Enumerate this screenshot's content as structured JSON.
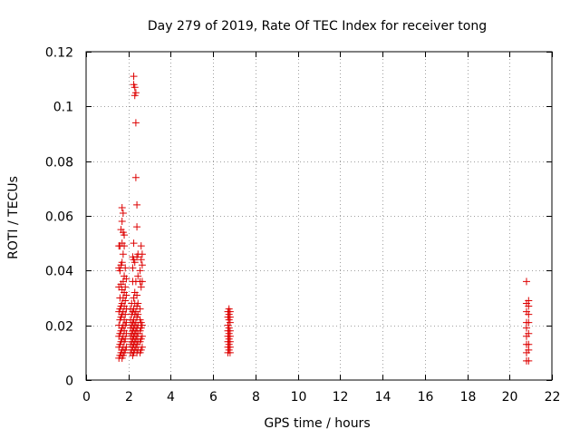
{
  "chart_data": {
    "type": "scatter",
    "title": "Day 279 of 2019, Rate Of TEC Index for receiver tong",
    "xlabel": "GPS time / hours",
    "ylabel": "ROTI / TECUs",
    "xlim": [
      0,
      22
    ],
    "ylim": [
      0,
      0.12
    ],
    "xticks": [
      0,
      2,
      4,
      6,
      8,
      10,
      12,
      14,
      16,
      18,
      20,
      22
    ],
    "yticks": [
      0,
      0.02,
      0.04,
      0.06,
      0.08,
      0.1,
      0.12
    ],
    "xtick_labels": [
      "0",
      "2",
      "4",
      "6",
      "8",
      "10",
      "12",
      "14",
      "16",
      "18",
      "20",
      "22"
    ],
    "ytick_labels": [
      "0",
      "0.02",
      "0.04",
      "0.06",
      "0.08",
      "0.1",
      "0.12"
    ],
    "grid": true,
    "marker": "plus",
    "color": "#dd0000",
    "points": [
      [
        1.55,
        0.008
      ],
      [
        1.55,
        0.012
      ],
      [
        1.55,
        0.016
      ],
      [
        1.55,
        0.02
      ],
      [
        1.55,
        0.025
      ],
      [
        1.55,
        0.034
      ],
      [
        1.55,
        0.041
      ],
      [
        1.55,
        0.049
      ],
      [
        1.6,
        0.009
      ],
      [
        1.6,
        0.013
      ],
      [
        1.6,
        0.017
      ],
      [
        1.6,
        0.022
      ],
      [
        1.6,
        0.026
      ],
      [
        1.6,
        0.03
      ],
      [
        1.6,
        0.04
      ],
      [
        1.6,
        0.049
      ],
      [
        1.65,
        0.01
      ],
      [
        1.65,
        0.014
      ],
      [
        1.65,
        0.018
      ],
      [
        1.65,
        0.023
      ],
      [
        1.65,
        0.027
      ],
      [
        1.65,
        0.035
      ],
      [
        1.65,
        0.042
      ],
      [
        1.65,
        0.055
      ],
      [
        1.7,
        0.008
      ],
      [
        1.7,
        0.011
      ],
      [
        1.7,
        0.015
      ],
      [
        1.7,
        0.019
      ],
      [
        1.7,
        0.024
      ],
      [
        1.7,
        0.028
      ],
      [
        1.7,
        0.033
      ],
      [
        1.7,
        0.043
      ],
      [
        1.7,
        0.05
      ],
      [
        1.7,
        0.058
      ],
      [
        1.7,
        0.063
      ],
      [
        1.75,
        0.009
      ],
      [
        1.75,
        0.012
      ],
      [
        1.75,
        0.016
      ],
      [
        1.75,
        0.02
      ],
      [
        1.75,
        0.025
      ],
      [
        1.75,
        0.03
      ],
      [
        1.75,
        0.036
      ],
      [
        1.75,
        0.046
      ],
      [
        1.75,
        0.054
      ],
      [
        1.75,
        0.061
      ],
      [
        1.8,
        0.01
      ],
      [
        1.8,
        0.014
      ],
      [
        1.8,
        0.018
      ],
      [
        1.8,
        0.022
      ],
      [
        1.8,
        0.027
      ],
      [
        1.8,
        0.032
      ],
      [
        1.8,
        0.038
      ],
      [
        1.8,
        0.049
      ],
      [
        1.8,
        0.053
      ],
      [
        1.85,
        0.011
      ],
      [
        1.85,
        0.015
      ],
      [
        1.85,
        0.02
      ],
      [
        1.85,
        0.024
      ],
      [
        1.85,
        0.029
      ],
      [
        1.85,
        0.034
      ],
      [
        1.85,
        0.041
      ],
      [
        1.9,
        0.012
      ],
      [
        1.9,
        0.017
      ],
      [
        1.9,
        0.021
      ],
      [
        1.9,
        0.026
      ],
      [
        1.9,
        0.031
      ],
      [
        1.9,
        0.037
      ],
      [
        2.1,
        0.01
      ],
      [
        2.1,
        0.013
      ],
      [
        2.1,
        0.016
      ],
      [
        2.1,
        0.019
      ],
      [
        2.1,
        0.022
      ],
      [
        2.1,
        0.026
      ],
      [
        2.15,
        0.011
      ],
      [
        2.15,
        0.014
      ],
      [
        2.15,
        0.017
      ],
      [
        2.15,
        0.02
      ],
      [
        2.15,
        0.024
      ],
      [
        2.15,
        0.028
      ],
      [
        2.2,
        0.009
      ],
      [
        2.2,
        0.012
      ],
      [
        2.2,
        0.015
      ],
      [
        2.2,
        0.018
      ],
      [
        2.2,
        0.021
      ],
      [
        2.2,
        0.025
      ],
      [
        2.2,
        0.036
      ],
      [
        2.2,
        0.041
      ],
      [
        2.2,
        0.045
      ],
      [
        2.25,
        0.01
      ],
      [
        2.25,
        0.013
      ],
      [
        2.25,
        0.016
      ],
      [
        2.25,
        0.019
      ],
      [
        2.25,
        0.022
      ],
      [
        2.25,
        0.026
      ],
      [
        2.25,
        0.03
      ],
      [
        2.25,
        0.044
      ],
      [
        2.25,
        0.05
      ],
      [
        2.25,
        0.108
      ],
      [
        2.25,
        0.111
      ],
      [
        2.3,
        0.011
      ],
      [
        2.3,
        0.014
      ],
      [
        2.3,
        0.017
      ],
      [
        2.3,
        0.02
      ],
      [
        2.3,
        0.024
      ],
      [
        2.3,
        0.028
      ],
      [
        2.3,
        0.032
      ],
      [
        2.3,
        0.043
      ],
      [
        2.3,
        0.104
      ],
      [
        2.3,
        0.107
      ],
      [
        2.35,
        0.012
      ],
      [
        2.35,
        0.015
      ],
      [
        2.35,
        0.018
      ],
      [
        2.35,
        0.021
      ],
      [
        2.35,
        0.025
      ],
      [
        2.35,
        0.036
      ],
      [
        2.35,
        0.074
      ],
      [
        2.35,
        0.094
      ],
      [
        2.35,
        0.105
      ],
      [
        2.4,
        0.01
      ],
      [
        2.4,
        0.013
      ],
      [
        2.4,
        0.016
      ],
      [
        2.4,
        0.019
      ],
      [
        2.4,
        0.023
      ],
      [
        2.4,
        0.027
      ],
      [
        2.4,
        0.031
      ],
      [
        2.4,
        0.045
      ],
      [
        2.4,
        0.056
      ],
      [
        2.4,
        0.064
      ],
      [
        2.45,
        0.011
      ],
      [
        2.45,
        0.014
      ],
      [
        2.45,
        0.017
      ],
      [
        2.45,
        0.02
      ],
      [
        2.45,
        0.024
      ],
      [
        2.45,
        0.028
      ],
      [
        2.45,
        0.038
      ],
      [
        2.45,
        0.046
      ],
      [
        2.55,
        0.01
      ],
      [
        2.55,
        0.014
      ],
      [
        2.55,
        0.018
      ],
      [
        2.55,
        0.022
      ],
      [
        2.55,
        0.026
      ],
      [
        2.55,
        0.036
      ],
      [
        2.55,
        0.04
      ],
      [
        2.6,
        0.011
      ],
      [
        2.6,
        0.015
      ],
      [
        2.6,
        0.019
      ],
      [
        2.6,
        0.021
      ],
      [
        2.6,
        0.034
      ],
      [
        2.6,
        0.044
      ],
      [
        2.6,
        0.049
      ],
      [
        2.65,
        0.012
      ],
      [
        2.65,
        0.016
      ],
      [
        2.65,
        0.02
      ],
      [
        2.65,
        0.036
      ],
      [
        2.65,
        0.042
      ],
      [
        2.65,
        0.046
      ],
      [
        6.7,
        0.01
      ],
      [
        6.7,
        0.012
      ],
      [
        6.7,
        0.014
      ],
      [
        6.7,
        0.016
      ],
      [
        6.7,
        0.018
      ],
      [
        6.7,
        0.02
      ],
      [
        6.7,
        0.023
      ],
      [
        6.7,
        0.025
      ],
      [
        6.75,
        0.011
      ],
      [
        6.75,
        0.013
      ],
      [
        6.75,
        0.015
      ],
      [
        6.75,
        0.017
      ],
      [
        6.75,
        0.019
      ],
      [
        6.75,
        0.022
      ],
      [
        6.75,
        0.024
      ],
      [
        6.75,
        0.026
      ],
      [
        6.8,
        0.01
      ],
      [
        6.8,
        0.012
      ],
      [
        6.8,
        0.014
      ],
      [
        6.8,
        0.016
      ],
      [
        6.8,
        0.018
      ],
      [
        6.8,
        0.021
      ],
      [
        6.8,
        0.023
      ],
      [
        6.8,
        0.025
      ],
      [
        20.8,
        0.007
      ],
      [
        20.8,
        0.01
      ],
      [
        20.8,
        0.013
      ],
      [
        20.8,
        0.016
      ],
      [
        20.8,
        0.019
      ],
      [
        20.8,
        0.021
      ],
      [
        20.8,
        0.025
      ],
      [
        20.8,
        0.028
      ],
      [
        20.8,
        0.036
      ],
      [
        20.9,
        0.007
      ],
      [
        20.9,
        0.011
      ],
      [
        20.9,
        0.013
      ],
      [
        20.9,
        0.017
      ],
      [
        20.9,
        0.021
      ],
      [
        20.9,
        0.024
      ],
      [
        20.9,
        0.027
      ],
      [
        20.9,
        0.029
      ]
    ]
  }
}
